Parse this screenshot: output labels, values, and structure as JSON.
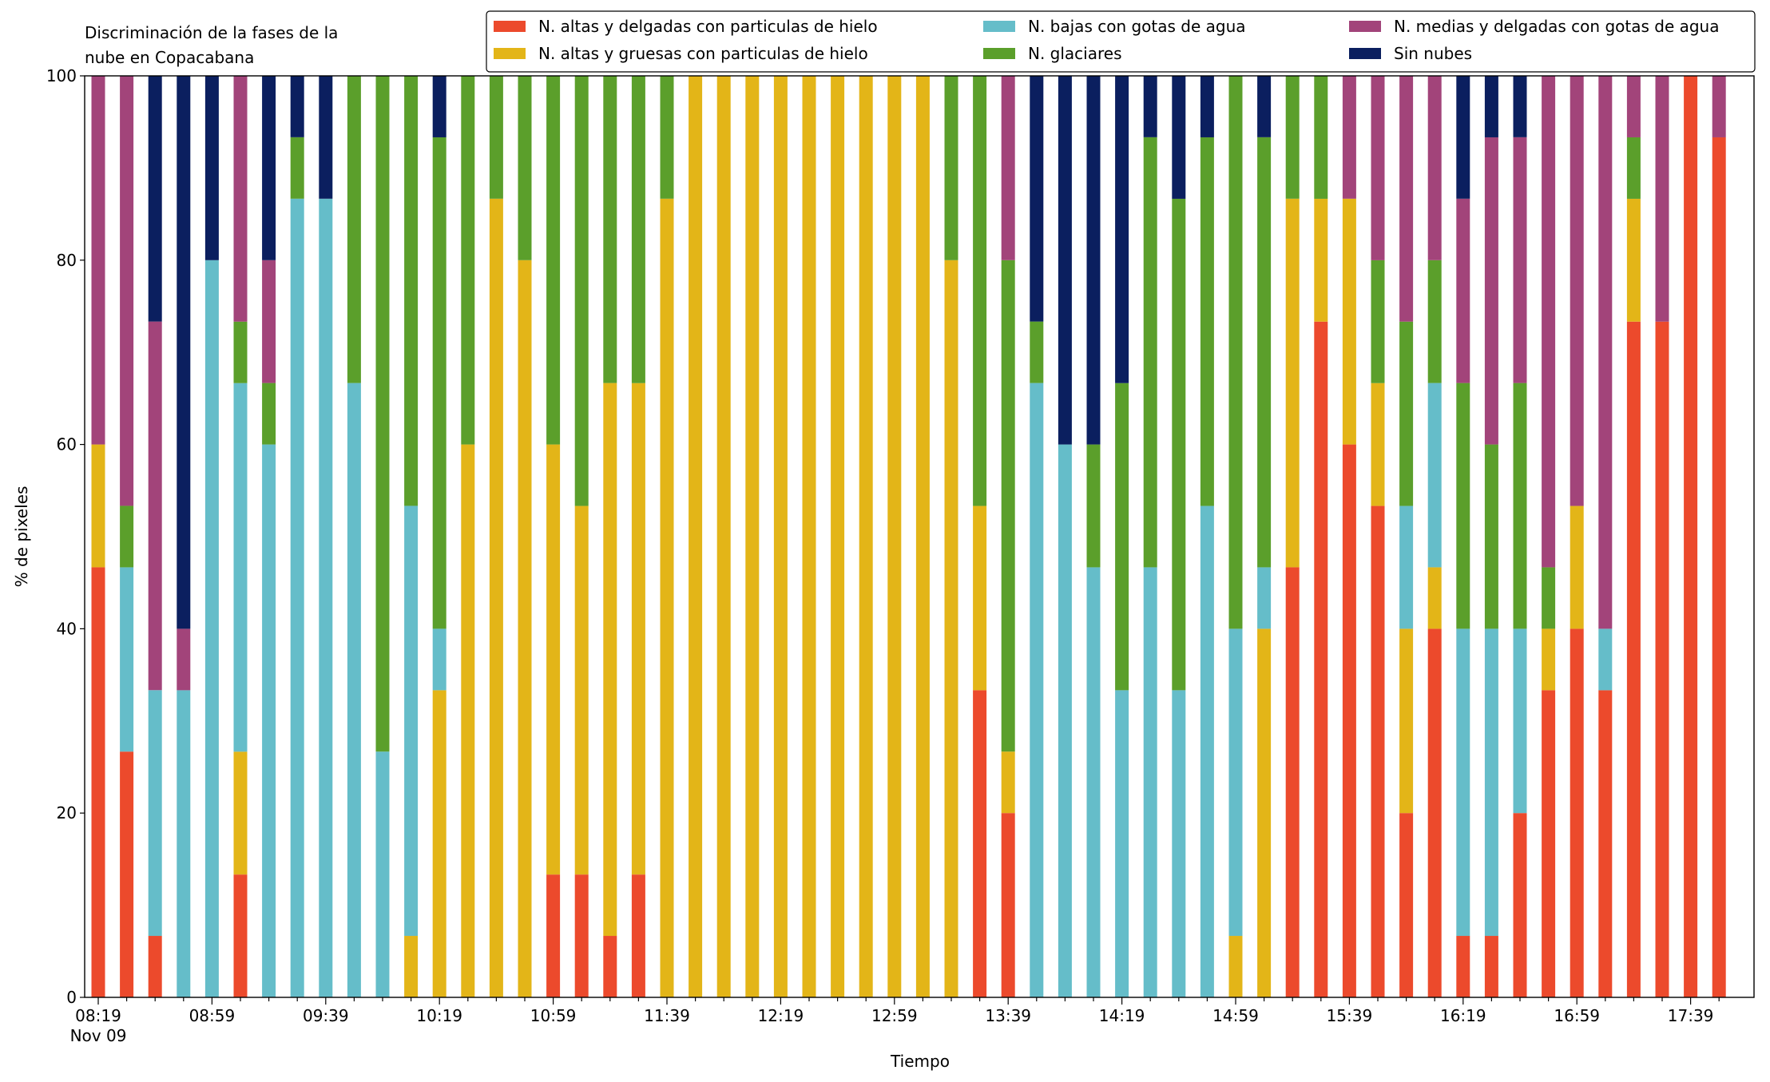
{
  "chart_data": {
    "type": "stacked_bar",
    "title": "Discriminación de la fases de la\nnube en Copacabana",
    "x_label": "Tiempo",
    "y_label": "% de pixeles",
    "date_label": "Nov 09",
    "categories": [
      "08:19",
      null,
      null,
      null,
      "08:59",
      null,
      null,
      null,
      "09:39",
      null,
      null,
      null,
      "10:19",
      null,
      null,
      null,
      "10:59",
      null,
      null,
      null,
      "11:39",
      null,
      null,
      null,
      "12:19",
      null,
      null,
      null,
      "12:59",
      null,
      null,
      null,
      "13:39",
      null,
      null,
      null,
      "14:19",
      null,
      null,
      null,
      "14:59",
      null,
      null,
      null,
      "15:39",
      null,
      null,
      null,
      "16:19",
      null,
      null,
      null,
      "16:59",
      null,
      null,
      null,
      "17:39",
      null
    ],
    "ylim": [
      0,
      100
    ],
    "yticks": [
      0,
      20,
      40,
      60,
      80,
      100
    ],
    "grid": false,
    "legend": "top-right",
    "series": [
      {
        "name": "N. altas y delgadas con particulas de hielo",
        "color": "#ec4a2c",
        "values": [
          46.67,
          26.67,
          6.67,
          0,
          0,
          13.33,
          0,
          0,
          0,
          0,
          0,
          0,
          0,
          0,
          0,
          0,
          13.33,
          13.33,
          6.67,
          13.33,
          0,
          0,
          0,
          0,
          0,
          0,
          0,
          0,
          0,
          0,
          0,
          33.33,
          20,
          0,
          0,
          0,
          0,
          0,
          0,
          0,
          0,
          0,
          46.67,
          73.33,
          60,
          53.33,
          20,
          40,
          6.67,
          6.67,
          20,
          33.33,
          40,
          33.33,
          73.33,
          73.33,
          100,
          93.33
        ]
      },
      {
        "name": "N. altas y gruesas con particulas de hielo",
        "color": "#e3b518",
        "values": [
          13.33,
          0,
          0,
          0,
          0,
          13.33,
          0,
          0,
          0,
          0,
          0,
          6.67,
          33.33,
          60,
          86.67,
          80,
          46.67,
          40,
          60,
          53.33,
          86.67,
          100,
          100,
          100,
          100,
          100,
          100,
          100,
          100,
          100,
          80,
          20,
          6.67,
          0,
          0,
          0,
          0,
          0,
          0,
          0,
          6.67,
          40,
          40,
          13.33,
          26.67,
          13.33,
          20,
          6.67,
          0,
          0,
          0,
          6.67,
          13.33,
          0,
          13.33,
          0,
          0,
          0
        ]
      },
      {
        "name": "N. bajas con gotas de agua",
        "color": "#65bdc9",
        "values": [
          0,
          20,
          26.67,
          33.33,
          80,
          40,
          60,
          86.67,
          86.67,
          66.67,
          26.67,
          46.67,
          6.67,
          0,
          0,
          0,
          0,
          0,
          0,
          0,
          0,
          0,
          0,
          0,
          0,
          0,
          0,
          0,
          0,
          0,
          0,
          0,
          0,
          66.67,
          60,
          46.67,
          33.33,
          46.67,
          33.33,
          53.33,
          33.33,
          6.67,
          0,
          0,
          0,
          0,
          13.33,
          20,
          33.33,
          33.33,
          20,
          0,
          0,
          6.67,
          0,
          0,
          0,
          0
        ]
      },
      {
        "name": "N. glaciares",
        "color": "#5b9f2b",
        "values": [
          0,
          6.67,
          0,
          0,
          0,
          6.67,
          6.67,
          6.67,
          0,
          33.33,
          73.33,
          46.67,
          53.33,
          40,
          13.33,
          20,
          40,
          46.67,
          33.33,
          33.33,
          13.33,
          0,
          0,
          0,
          0,
          0,
          0,
          0,
          0,
          0,
          20,
          46.67,
          53.33,
          6.67,
          0,
          13.33,
          33.33,
          46.67,
          53.33,
          40,
          60,
          46.67,
          13.33,
          13.33,
          0,
          13.33,
          20,
          13.33,
          26.67,
          20,
          26.67,
          6.67,
          0,
          0,
          6.67,
          0,
          0,
          0
        ]
      },
      {
        "name": "N. medias y delgadas con gotas de agua",
        "color": "#a2447a",
        "values": [
          40,
          46.67,
          40,
          6.67,
          0,
          26.67,
          13.33,
          0,
          0,
          0,
          0,
          0,
          0,
          0,
          0,
          0,
          0,
          0,
          0,
          0,
          0,
          0,
          0,
          0,
          0,
          0,
          0,
          0,
          0,
          0,
          0,
          0,
          20,
          0,
          0,
          0,
          0,
          0,
          0,
          0,
          0,
          0,
          0,
          0,
          13.33,
          20,
          26.67,
          20,
          20,
          33.33,
          26.67,
          53.33,
          46.67,
          60,
          6.67,
          26.67,
          0,
          6.67
        ]
      },
      {
        "name": "Sin nubes",
        "color": "#0b1f5f",
        "values": [
          0,
          0,
          26.67,
          60,
          20,
          0,
          20,
          6.67,
          13.33,
          0,
          0,
          0,
          6.67,
          0,
          0,
          0,
          0,
          0,
          0,
          0,
          0,
          0,
          0,
          0,
          0,
          0,
          0,
          0,
          0,
          0,
          0,
          0,
          0,
          26.67,
          40,
          40,
          33.33,
          6.67,
          13.33,
          6.67,
          0,
          6.67,
          0,
          0,
          0,
          0,
          0,
          0,
          13.33,
          6.67,
          6.67,
          0,
          0,
          0,
          0,
          0,
          0,
          0
        ]
      }
    ]
  }
}
